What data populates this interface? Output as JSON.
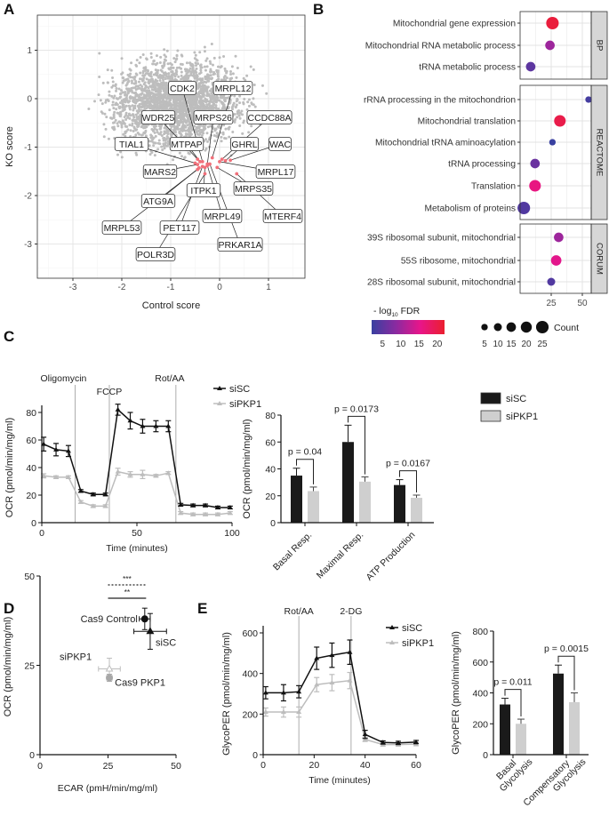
{
  "panel_labels": {
    "a": "A",
    "b": "B",
    "c": "C",
    "d": "D",
    "e": "E"
  },
  "chart_data": [
    {
      "id": "A",
      "type": "scatter",
      "xlabel": "Control score",
      "ylabel": "KO score",
      "xlim": [
        -3.75,
        1.75
      ],
      "ylim": [
        -3.6,
        1.6
      ],
      "xticks": [
        -3,
        -2,
        -1,
        0,
        1
      ],
      "yticks": [
        1,
        0,
        -1,
        -2,
        -3
      ],
      "grid": true,
      "highlight_color": "#f0707a",
      "background_color": "#bdbdbd",
      "genes": [
        {
          "name": "CDK2",
          "x": -0.35,
          "y": -1.3
        },
        {
          "name": "MRPL12",
          "x": -0.15,
          "y": -1.22
        },
        {
          "name": "WDR25",
          "x": -0.45,
          "y": -1.25
        },
        {
          "name": "MRPS26",
          "x": -0.25,
          "y": -1.35
        },
        {
          "name": "CCDC88A",
          "x": 0.05,
          "y": -1.25
        },
        {
          "name": "TIAL1",
          "x": -0.5,
          "y": -1.33
        },
        {
          "name": "MTPAP",
          "x": -0.4,
          "y": -1.3
        },
        {
          "name": "GHRL",
          "x": 0.12,
          "y": -1.28
        },
        {
          "name": "WAC",
          "x": 0.22,
          "y": -1.27
        },
        {
          "name": "MARS2",
          "x": -0.45,
          "y": -1.36
        },
        {
          "name": "MRPL17",
          "x": 0.0,
          "y": -1.3
        },
        {
          "name": "ITPK1",
          "x": -0.3,
          "y": -1.42
        },
        {
          "name": "MRPS35",
          "x": -0.05,
          "y": -1.42
        },
        {
          "name": "ATG9A",
          "x": -0.42,
          "y": -1.43
        },
        {
          "name": "MRPL49",
          "x": -0.25,
          "y": -1.38
        },
        {
          "name": "MTERF4",
          "x": 0.35,
          "y": -1.55
        },
        {
          "name": "MRPL53",
          "x": -0.45,
          "y": -1.46
        },
        {
          "name": "PET117",
          "x": -0.35,
          "y": -1.4
        },
        {
          "name": "PRKAR1A",
          "x": -0.2,
          "y": -1.35
        },
        {
          "name": "POLR3D",
          "x": -0.3,
          "y": -1.55
        }
      ]
    },
    {
      "id": "B",
      "type": "scatter",
      "xticks": [
        25,
        50
      ],
      "xlim": [
        0,
        57
      ],
      "facets": [
        {
          "name": "BP",
          "terms": [
            {
              "term": "Mitochondrial gene expression",
              "x": 26,
              "count": 25,
              "fdr": 21
            },
            {
              "term": "Mitochondrial RNA metabolic process",
              "x": 24,
              "count": 15,
              "fdr": 10
            },
            {
              "term": "tRNA metabolic process",
              "x": 8.5,
              "count": 15,
              "fdr": 5
            }
          ]
        },
        {
          "name": "REACTOME",
          "terms": [
            {
              "term": "rRNA processing in the mitochondrion",
              "x": 55,
              "count": 5,
              "fdr": 3
            },
            {
              "term": "Mitochondrial translation",
              "x": 32,
              "count": 22,
              "fdr": 20
            },
            {
              "term": "Mitochondrial tRNA aminoacylation",
              "x": 26,
              "count": 5,
              "fdr": 2
            },
            {
              "term": "tRNA processing",
              "x": 12,
              "count": 15,
              "fdr": 6
            },
            {
              "term": "Translation",
              "x": 12,
              "count": 22,
              "fdr": 16
            },
            {
              "term": "Metabolism of proteins",
              "x": 3,
              "count": 25,
              "fdr": 4
            }
          ]
        },
        {
          "name": "CORUM",
          "terms": [
            {
              "term": "39S ribosomal subunit, mitochondrial",
              "x": 31,
              "count": 15,
              "fdr": 10
            },
            {
              "term": "55S ribosome, mitochondrial",
              "x": 29,
              "count": 18,
              "fdr": 15
            },
            {
              "term": "28S ribosomal subunit, mitochondrial",
              "x": 25,
              "count": 10,
              "fdr": 4
            }
          ]
        }
      ],
      "color_legend": {
        "title_prefix": "- log",
        "title_sub": "10",
        "title_suffix": " FDR",
        "ticks": [
          5,
          10,
          15,
          20
        ],
        "range": [
          2,
          22
        ]
      },
      "size_legend": {
        "title": "Count",
        "values": [
          5,
          10,
          15,
          20,
          25
        ]
      },
      "colors": [
        "#3940a0",
        "#8a2aa0",
        "#e8158a",
        "#ea1f2e"
      ]
    },
    {
      "id": "C-left",
      "type": "line",
      "xlabel": "Time (minutes)",
      "ylabel": "OCR (pmol/min/mg/ml)",
      "xlim": [
        0,
        100
      ],
      "ylim": [
        0,
        90
      ],
      "xticks": [
        0,
        50,
        100
      ],
      "yticks": [
        0,
        20,
        40,
        60,
        80
      ],
      "injections": [
        {
          "label": "Oligomycin",
          "x": 17.5
        },
        {
          "label": "FCCP",
          "x": 35.5
        },
        {
          "label": "Rot/AA",
          "x": 70.5
        }
      ],
      "x": [
        1,
        7.5,
        14,
        20.5,
        27,
        33.5,
        40,
        46.5,
        53,
        60,
        66.5,
        73,
        79.5,
        86,
        92.5,
        99
      ],
      "series": [
        {
          "name": "siSC",
          "color": "#111111",
          "values": [
            57,
            53,
            52,
            23,
            20.5,
            20.5,
            82,
            74,
            70,
            70,
            70,
            13,
            12.5,
            12.5,
            11,
            11
          ],
          "err": [
            5,
            4.5,
            4,
            1,
            1,
            1,
            4,
            6,
            5,
            4,
            4,
            1,
            1,
            1,
            1,
            1
          ]
        },
        {
          "name": "siPKP1",
          "color": "#bdbdbd",
          "values": [
            34,
            33,
            33,
            15,
            12,
            12,
            37,
            35,
            35,
            34,
            36,
            7,
            6,
            6,
            6,
            7
          ],
          "err": [
            1.5,
            1,
            1,
            1,
            1,
            1,
            2.5,
            2,
            3,
            1,
            1,
            1,
            1,
            1,
            1,
            1
          ]
        }
      ]
    },
    {
      "id": "C-right",
      "type": "bar",
      "ylabel": "OCR (pmol/min/mg/ml)",
      "ylim": [
        0,
        80
      ],
      "yticks": [
        0,
        20,
        40,
        60,
        80
      ],
      "categories": [
        "Basal Resp.",
        "Maximal Resp.",
        "ATP Production"
      ],
      "series": [
        {
          "name": "siSC",
          "color": "#1a1a1a",
          "values": [
            35,
            60,
            28
          ],
          "err": [
            5.5,
            12.5,
            4
          ]
        },
        {
          "name": "siPKP1",
          "color": "#cfcfcf",
          "values": [
            23.5,
            30.5,
            18.5
          ],
          "err": [
            3,
            3.5,
            2
          ]
        }
      ],
      "annotations": [
        "p = 0.04",
        "p = 0.0173",
        "p = 0.0167"
      ]
    },
    {
      "id": "D",
      "type": "scatter",
      "xlabel": "ECAR (pmH/min/mg/ml)",
      "ylabel": "OCR (pmol/min/mg/ml)",
      "xlim": [
        0,
        50
      ],
      "ylim": [
        0,
        50
      ],
      "xticks": [
        0,
        25,
        50
      ],
      "yticks": [
        0,
        25,
        50
      ],
      "points": [
        {
          "label": "Cas9 Control",
          "x": 38.5,
          "y": 38,
          "xerr": 2,
          "yerr": 3,
          "marker": "circle",
          "color": "#111111"
        },
        {
          "label": "siSC",
          "x": 40.5,
          "y": 34.5,
          "xerr": 6,
          "yerr": 5,
          "marker": "triangle",
          "color": "#111111"
        },
        {
          "label": "siPKP1",
          "x": 25.5,
          "y": 24,
          "xerr": 4,
          "yerr": 3,
          "marker": "open-triangle",
          "color": "#bdbdbd"
        },
        {
          "label": "Cas9 PKP1",
          "x": 25.5,
          "y": 21.5,
          "xerr": 1,
          "yerr": 1,
          "marker": "circle",
          "color": "#a8a8a8"
        }
      ],
      "significance": [
        {
          "label": "***",
          "style": "dotted"
        },
        {
          "label": "**",
          "style": "solid"
        }
      ]
    },
    {
      "id": "E-left",
      "type": "line",
      "xlabel": "Time (minutes)",
      "ylabel": "GlycoPER (pmol/min/mg/ml)",
      "xlim": [
        0,
        60
      ],
      "ylim": [
        0,
        600
      ],
      "xticks": [
        0,
        20,
        40,
        60
      ],
      "yticks": [
        0,
        200,
        400,
        600
      ],
      "injections": [
        {
          "label": "Rot/AA",
          "x": 14
        },
        {
          "label": "2-DG",
          "x": 34.5
        }
      ],
      "x": [
        1,
        8,
        14,
        21,
        27,
        34,
        40,
        47,
        53,
        60
      ],
      "series": [
        {
          "name": "siSC",
          "color": "#111111",
          "values": [
            305,
            305,
            310,
            475,
            490,
            505,
            100,
            60,
            58,
            62
          ],
          "err": [
            30,
            40,
            30,
            55,
            60,
            60,
            20,
            8,
            8,
            8
          ]
        },
        {
          "name": "siPKP1",
          "color": "#bdbdbd",
          "values": [
            210,
            210,
            210,
            345,
            355,
            365,
            75,
            50,
            50,
            52
          ],
          "err": [
            20,
            25,
            25,
            35,
            40,
            40,
            10,
            8,
            8,
            8
          ]
        }
      ]
    },
    {
      "id": "E-right",
      "type": "bar",
      "ylabel": "GlycoPER (pmol/min/mg/ml)",
      "ylim": [
        0,
        800
      ],
      "yticks": [
        0,
        200,
        400,
        600,
        800
      ],
      "categories": [
        [
          "Basal",
          "Glycolysis"
        ],
        [
          "Compensatory",
          "Glycolysis"
        ]
      ],
      "series": [
        {
          "name": "siSC",
          "color": "#1a1a1a",
          "values": [
            325,
            525
          ],
          "err": [
            40,
            55
          ]
        },
        {
          "name": "siPKP1",
          "color": "#cfcfcf",
          "values": [
            200,
            340
          ],
          "err": [
            30,
            60
          ]
        }
      ],
      "annotations": [
        "p = 0.011",
        "p = 0.0015"
      ]
    }
  ]
}
